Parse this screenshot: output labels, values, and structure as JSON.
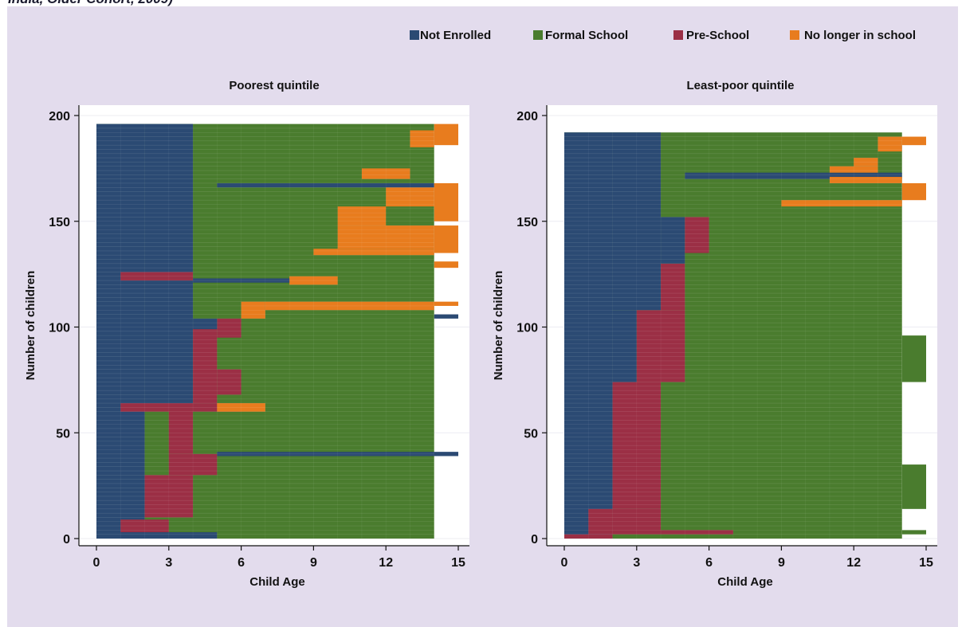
{
  "page_title_partial": "India, Older Cohort, 2009)",
  "colors": {
    "not_enrolled": "#2b4a73",
    "formal_school": "#4a7c2e",
    "pre_school": "#9b2f45",
    "no_longer_in_school": "#e87c1e",
    "panel_background": "#e3dced",
    "plot_background": "#ffffff"
  },
  "legend": [
    {
      "key": "not_enrolled",
      "label": "Not Enrolled"
    },
    {
      "key": "formal_school",
      "label": "Formal School"
    },
    {
      "key": "pre_school",
      "label": "Pre-School"
    },
    {
      "key": "no_longer_in_school",
      "label": "No longer in school"
    }
  ],
  "chart_data": [
    {
      "type": "sequence-index-plot",
      "title": "Poorest quintile",
      "xlabel": "Child Age",
      "ylabel": "Number of children",
      "xlim": [
        0,
        15
      ],
      "ylim": [
        0,
        200
      ],
      "xticks": [
        "0",
        "3",
        "6",
        "9",
        "12",
        "15"
      ],
      "yticks": [
        "0",
        "50",
        "100",
        "150",
        "200"
      ],
      "n_sequences": 196,
      "bands": [
        {
          "y": [
            0,
            196
          ],
          "x": [
            0,
            14
          ],
          "status": "formal_school"
        },
        {
          "y": [
            0,
            196
          ],
          "x": [
            0,
            2
          ],
          "status": "not_enrolled"
        },
        {
          "y": [
            0,
            3
          ],
          "x": [
            0,
            5
          ],
          "status": "not_enrolled"
        },
        {
          "y": [
            3,
            9
          ],
          "x": [
            1,
            3
          ],
          "status": "pre_school"
        },
        {
          "y": [
            10,
            30
          ],
          "x": [
            2,
            4
          ],
          "status": "pre_school"
        },
        {
          "y": [
            30,
            40
          ],
          "x": [
            3,
            5
          ],
          "status": "pre_school"
        },
        {
          "y": [
            40,
            62
          ],
          "x": [
            3,
            4
          ],
          "status": "pre_school"
        },
        {
          "y": [
            62,
            196
          ],
          "x": [
            2,
            4
          ],
          "status": "not_enrolled"
        },
        {
          "y": [
            64,
            100
          ],
          "x": [
            4,
            5
          ],
          "status": "pre_school"
        },
        {
          "y": [
            68,
            80
          ],
          "x": [
            5,
            6
          ],
          "status": "pre_school"
        },
        {
          "y": [
            95,
            104
          ],
          "x": [
            5,
            6
          ],
          "status": "pre_school"
        },
        {
          "y": [
            99,
            104
          ],
          "x": [
            4,
            5
          ],
          "status": "not_enrolled"
        },
        {
          "y": [
            104,
            112
          ],
          "x": [
            6,
            7
          ],
          "status": "no_longer_in_school"
        },
        {
          "y": [
            108,
            112
          ],
          "x": [
            7,
            14
          ],
          "status": "no_longer_in_school"
        },
        {
          "y": [
            120,
            124
          ],
          "x": [
            8,
            10
          ],
          "status": "no_longer_in_school"
        },
        {
          "y": [
            134,
            137
          ],
          "x": [
            9,
            14
          ],
          "status": "no_longer_in_school"
        },
        {
          "y": [
            137,
            148
          ],
          "x": [
            10,
            14
          ],
          "status": "no_longer_in_school"
        },
        {
          "y": [
            148,
            157
          ],
          "x": [
            10,
            12
          ],
          "status": "no_longer_in_school"
        },
        {
          "y": [
            157,
            167
          ],
          "x": [
            12,
            14
          ],
          "status": "no_longer_in_school"
        },
        {
          "y": [
            170,
            175
          ],
          "x": [
            11,
            13
          ],
          "status": "no_longer_in_school"
        },
        {
          "y": [
            185,
            193
          ],
          "x": [
            13,
            14
          ],
          "status": "no_longer_in_school"
        },
        {
          "y": [
            39,
            41
          ],
          "x": [
            5,
            15
          ],
          "status": "not_enrolled"
        },
        {
          "y": [
            166,
            168
          ],
          "x": [
            5,
            14
          ],
          "status": "not_enrolled"
        },
        {
          "y": [
            121,
            123
          ],
          "x": [
            4,
            8
          ],
          "status": "not_enrolled"
        },
        {
          "y": [
            60,
            64
          ],
          "x": [
            1,
            6
          ],
          "status": "pre_school"
        },
        {
          "y": [
            122,
            126
          ],
          "x": [
            1,
            4
          ],
          "status": "pre_school"
        },
        {
          "y": [
            60,
            64
          ],
          "x": [
            5,
            7
          ],
          "status": "no_longer_in_school"
        },
        {
          "y": [
            104,
            106
          ],
          "x": [
            14,
            15
          ],
          "status": "not_enrolled"
        },
        {
          "y": [
            110,
            112
          ],
          "x": [
            14,
            15
          ],
          "status": "no_longer_in_school"
        },
        {
          "y": [
            128,
            131
          ],
          "x": [
            14,
            15
          ],
          "status": "no_longer_in_school"
        },
        {
          "y": [
            135,
            148
          ],
          "x": [
            14,
            15
          ],
          "status": "no_longer_in_school"
        },
        {
          "y": [
            150,
            168
          ],
          "x": [
            14,
            15
          ],
          "status": "no_longer_in_school"
        },
        {
          "y": [
            186,
            196
          ],
          "x": [
            14,
            15
          ],
          "status": "no_longer_in_school"
        }
      ]
    },
    {
      "type": "sequence-index-plot",
      "title": "Least-poor quintile",
      "xlabel": "Child Age",
      "ylabel": "Number of children",
      "xlim": [
        0,
        15
      ],
      "ylim": [
        0,
        200
      ],
      "xticks": [
        "0",
        "3",
        "6",
        "9",
        "12",
        "15"
      ],
      "yticks": [
        "0",
        "50",
        "100",
        "150",
        "200"
      ],
      "n_sequences": 192,
      "bands": [
        {
          "y": [
            0,
            192
          ],
          "x": [
            0,
            14
          ],
          "status": "formal_school"
        },
        {
          "y": [
            0,
            192
          ],
          "x": [
            0,
            2
          ],
          "status": "not_enrolled"
        },
        {
          "y": [
            0,
            2
          ],
          "x": [
            0,
            2
          ],
          "status": "pre_school"
        },
        {
          "y": [
            2,
            14
          ],
          "x": [
            1,
            2
          ],
          "status": "pre_school"
        },
        {
          "y": [
            2,
            14
          ],
          "x": [
            2,
            4
          ],
          "status": "pre_school"
        },
        {
          "y": [
            14,
            74
          ],
          "x": [
            2,
            4
          ],
          "status": "pre_school"
        },
        {
          "y": [
            74,
            108
          ],
          "x": [
            2,
            3
          ],
          "status": "not_enrolled"
        },
        {
          "y": [
            74,
            108
          ],
          "x": [
            3,
            5
          ],
          "status": "pre_school"
        },
        {
          "y": [
            108,
            192
          ],
          "x": [
            2,
            4
          ],
          "status": "not_enrolled"
        },
        {
          "y": [
            108,
            130
          ],
          "x": [
            4,
            5
          ],
          "status": "pre_school"
        },
        {
          "y": [
            130,
            152
          ],
          "x": [
            4,
            5
          ],
          "status": "not_enrolled"
        },
        {
          "y": [
            135,
            152
          ],
          "x": [
            5,
            6
          ],
          "status": "pre_school"
        },
        {
          "y": [
            2,
            4
          ],
          "x": [
            4,
            7
          ],
          "status": "pre_school"
        },
        {
          "y": [
            170,
            173
          ],
          "x": [
            5,
            14
          ],
          "status": "not_enrolled"
        },
        {
          "y": [
            157,
            160
          ],
          "x": [
            9,
            14
          ],
          "status": "no_longer_in_school"
        },
        {
          "y": [
            168,
            171
          ],
          "x": [
            11,
            14
          ],
          "status": "no_longer_in_school"
        },
        {
          "y": [
            173,
            176
          ],
          "x": [
            11,
            13
          ],
          "status": "no_longer_in_school"
        },
        {
          "y": [
            176,
            180
          ],
          "x": [
            12,
            13
          ],
          "status": "no_longer_in_school"
        },
        {
          "y": [
            183,
            190
          ],
          "x": [
            13,
            14
          ],
          "status": "no_longer_in_school"
        },
        {
          "y": [
            2,
            4
          ],
          "x": [
            14,
            15
          ],
          "status": "formal_school"
        },
        {
          "y": [
            14,
            35
          ],
          "x": [
            14,
            15
          ],
          "status": "formal_school"
        },
        {
          "y": [
            74,
            96
          ],
          "x": [
            14,
            15
          ],
          "status": "formal_school"
        },
        {
          "y": [
            160,
            168
          ],
          "x": [
            14,
            15
          ],
          "status": "no_longer_in_school"
        },
        {
          "y": [
            186,
            190
          ],
          "x": [
            14,
            15
          ],
          "status": "no_longer_in_school"
        }
      ]
    }
  ]
}
